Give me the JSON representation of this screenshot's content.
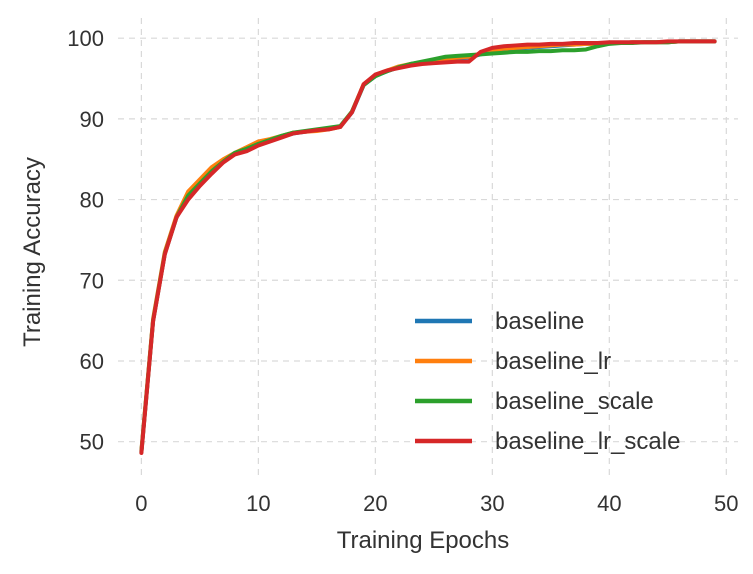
{
  "chart_data": {
    "type": "line",
    "title": "",
    "xlabel": "Training Epochs",
    "ylabel": "Training Accuracy",
    "xlim": [
      -2,
      51
    ],
    "ylim": [
      45.5,
      102.5
    ],
    "xticks": [
      0,
      10,
      20,
      30,
      40,
      50
    ],
    "yticks": [
      50,
      60,
      70,
      80,
      90,
      100
    ],
    "grid": true,
    "legend_position": "lower-right",
    "x": [
      0,
      1,
      2,
      3,
      4,
      5,
      6,
      7,
      8,
      9,
      10,
      11,
      12,
      13,
      14,
      15,
      16,
      17,
      18,
      19,
      20,
      21,
      22,
      23,
      24,
      25,
      26,
      27,
      28,
      29,
      30,
      31,
      32,
      33,
      34,
      35,
      36,
      37,
      38,
      39,
      40,
      41,
      42,
      43,
      44,
      45,
      46,
      47,
      48,
      49
    ],
    "series": [
      {
        "name": "baseline",
        "color": "#1f77b4",
        "values": [
          48.8,
          65.0,
          73.3,
          77.8,
          80.3,
          82.0,
          83.5,
          84.7,
          85.7,
          86.2,
          86.8,
          87.3,
          87.8,
          88.2,
          88.4,
          88.6,
          88.8,
          89.0,
          90.8,
          94.2,
          95.3,
          95.9,
          96.4,
          96.8,
          97.0,
          97.2,
          97.4,
          97.5,
          97.6,
          98.0,
          98.4,
          98.6,
          98.7,
          98.8,
          98.9,
          99.0,
          99.1,
          99.2,
          99.3,
          99.3,
          99.4,
          99.4,
          99.5,
          99.5,
          99.5,
          99.5,
          99.6,
          99.6,
          99.6,
          99.6
        ]
      },
      {
        "name": "baseline_lr",
        "color": "#ff7f0e",
        "values": [
          48.9,
          65.2,
          73.5,
          78.0,
          81.0,
          82.5,
          84.0,
          85.0,
          85.8,
          86.5,
          87.2,
          87.5,
          87.9,
          88.3,
          88.4,
          88.5,
          88.7,
          89.0,
          90.9,
          94.3,
          95.4,
          96.0,
          96.5,
          96.8,
          97.0,
          97.2,
          97.4,
          97.6,
          97.7,
          98.1,
          98.5,
          98.7,
          98.8,
          98.9,
          99.0,
          99.1,
          99.2,
          99.2,
          99.3,
          99.3,
          99.4,
          99.4,
          99.5,
          99.5,
          99.5,
          99.5,
          99.6,
          99.6,
          99.6,
          99.6
        ]
      },
      {
        "name": "baseline_scale",
        "color": "#2ca02c",
        "values": [
          48.7,
          65.0,
          73.3,
          77.8,
          80.5,
          82.0,
          83.5,
          84.7,
          85.8,
          86.3,
          86.9,
          87.4,
          87.9,
          88.3,
          88.5,
          88.7,
          88.9,
          89.1,
          90.9,
          94.2,
          95.3,
          95.9,
          96.4,
          96.8,
          97.1,
          97.4,
          97.7,
          97.8,
          97.9,
          98.0,
          98.1,
          98.2,
          98.3,
          98.3,
          98.4,
          98.4,
          98.5,
          98.5,
          98.6,
          99.0,
          99.3,
          99.4,
          99.4,
          99.5,
          99.5,
          99.5,
          99.6,
          99.6,
          99.6,
          99.6
        ]
      },
      {
        "name": "baseline_lr_scale",
        "color": "#d62728",
        "values": [
          48.6,
          64.9,
          73.2,
          77.8,
          80.0,
          81.7,
          83.2,
          84.6,
          85.6,
          86.0,
          86.7,
          87.2,
          87.7,
          88.2,
          88.4,
          88.6,
          88.7,
          89.0,
          90.8,
          94.3,
          95.5,
          96.0,
          96.3,
          96.6,
          96.8,
          96.9,
          97.0,
          97.1,
          97.1,
          98.3,
          98.8,
          99.0,
          99.1,
          99.2,
          99.2,
          99.3,
          99.3,
          99.4,
          99.4,
          99.4,
          99.5,
          99.5,
          99.5,
          99.5,
          99.5,
          99.6,
          99.6,
          99.6,
          99.6,
          99.6
        ]
      }
    ]
  }
}
